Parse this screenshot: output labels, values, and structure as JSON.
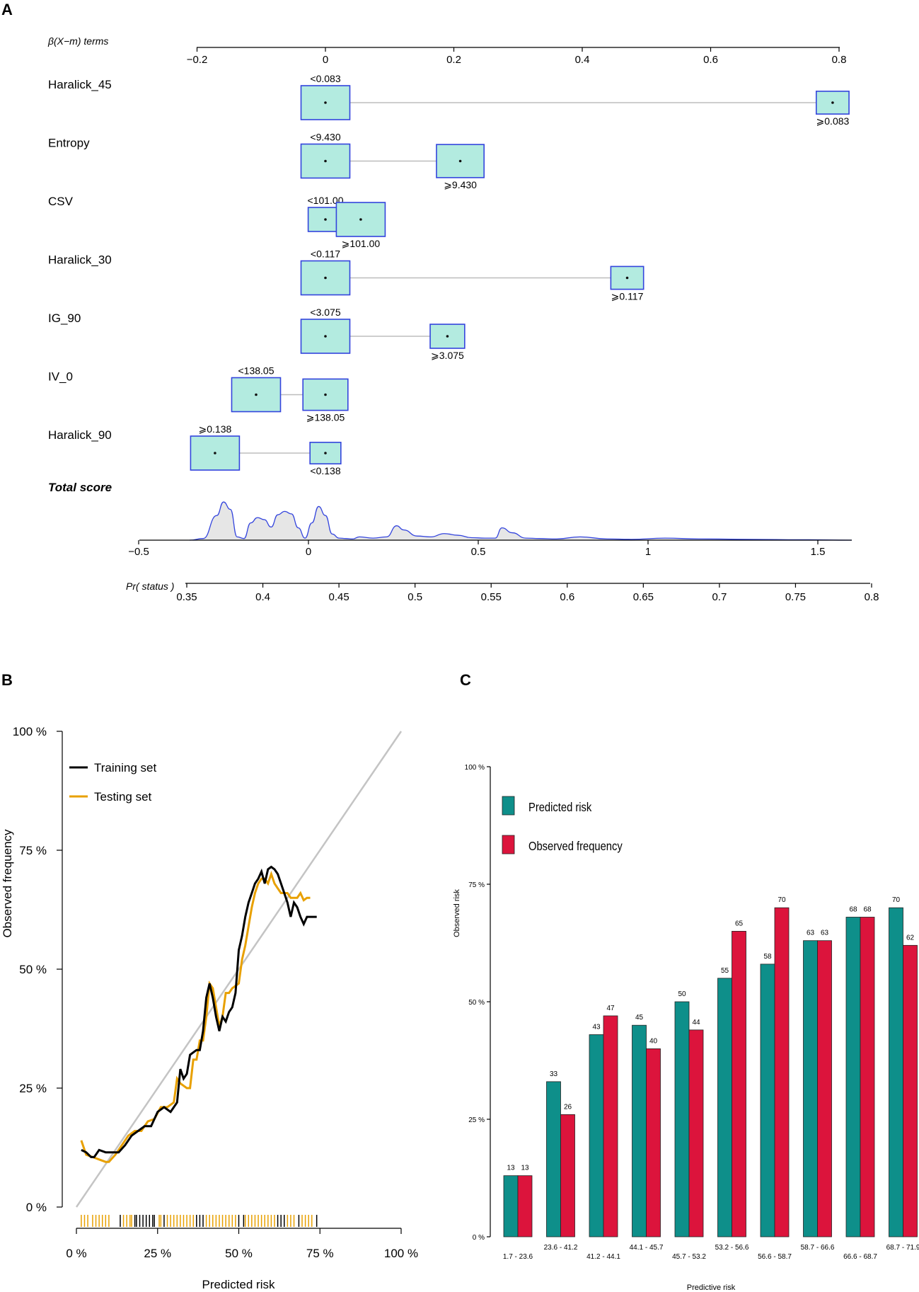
{
  "panels": {
    "a": "A",
    "b": "B",
    "c": "C"
  },
  "chart_data": [
    {
      "id": "A",
      "type": "nomogram",
      "beta_axis": {
        "label": "β(X−m) terms",
        "ticks": [
          -0.2,
          0,
          0.2,
          0.4,
          0.6,
          0.8
        ],
        "tick_labels": [
          "−0.2",
          "0",
          "0.2",
          "0.4",
          "0.6",
          "0.8"
        ]
      },
      "variables": [
        {
          "name": "Haralick_45",
          "levels": [
            {
              "label": "<0.083",
              "beta": 0.0,
              "size": 1.0,
              "label_pos": "above"
            },
            {
              "label": "⩾0.083",
              "beta": 0.79,
              "size": 0.45,
              "label_pos": "below"
            }
          ]
        },
        {
          "name": "Entropy",
          "levels": [
            {
              "label": "<9.430",
              "beta": 0.0,
              "size": 1.0,
              "label_pos": "above"
            },
            {
              "label": "⩾9.430",
              "beta": 0.21,
              "size": 0.95,
              "label_pos": "below"
            }
          ]
        },
        {
          "name": "CSV",
          "levels": [
            {
              "label": "<101.00",
              "beta": 0.0,
              "size": 0.5,
              "label_pos": "above"
            },
            {
              "label": "⩾101.00",
              "beta": 0.055,
              "size": 1.0,
              "label_pos": "below"
            }
          ]
        },
        {
          "name": "Haralick_30",
          "levels": [
            {
              "label": "<0.117",
              "beta": 0.0,
              "size": 1.0,
              "label_pos": "above"
            },
            {
              "label": "⩾0.117",
              "beta": 0.47,
              "size": 0.45,
              "label_pos": "below"
            }
          ]
        },
        {
          "name": "IG_90",
          "levels": [
            {
              "label": "<3.075",
              "beta": 0.0,
              "size": 1.0,
              "label_pos": "above"
            },
            {
              "label": "⩾3.075",
              "beta": 0.19,
              "size": 0.5,
              "label_pos": "below"
            }
          ]
        },
        {
          "name": "IV_0",
          "levels": [
            {
              "label": "<138.05",
              "beta": -0.108,
              "size": 1.0,
              "label_pos": "above"
            },
            {
              "label": "⩾138.05",
              "beta": 0.0,
              "size": 0.85,
              "label_pos": "below"
            }
          ]
        },
        {
          "name": "Haralick_90",
          "levels": [
            {
              "label": "⩾0.138",
              "beta": -0.172,
              "size": 1.0,
              "label_pos": "above"
            },
            {
              "label": "<0.138",
              "beta": 0.0,
              "size": 0.4,
              "label_pos": "below"
            }
          ]
        }
      ],
      "total_score": {
        "label": "Total score",
        "ticks": [
          -0.5,
          0,
          0.5,
          1,
          1.5
        ],
        "tick_labels": [
          "−0.5",
          "0",
          "0.5",
          "1",
          "1.5"
        ],
        "density_x": [
          -0.35,
          -0.31,
          -0.27,
          -0.25,
          -0.23,
          -0.21,
          -0.19,
          -0.17,
          -0.15,
          -0.13,
          -0.11,
          -0.09,
          -0.07,
          -0.05,
          -0.03,
          -0.01,
          0.01,
          0.03,
          0.05,
          0.07,
          0.09,
          0.11,
          0.13,
          0.15,
          0.19,
          0.23,
          0.26,
          0.28,
          0.32,
          0.36,
          0.4,
          0.44,
          0.48,
          0.52,
          0.55,
          0.57,
          0.6,
          0.64,
          0.68,
          0.73,
          0.8,
          0.88,
          0.95,
          1.05,
          1.15,
          1.3,
          1.45,
          1.6
        ],
        "density_y": [
          0.0,
          0.04,
          0.6,
          0.93,
          0.75,
          0.08,
          0.04,
          0.42,
          0.55,
          0.5,
          0.32,
          0.62,
          0.7,
          0.64,
          0.3,
          0.05,
          0.42,
          0.82,
          0.6,
          0.15,
          0.05,
          0.04,
          0.03,
          0.08,
          0.05,
          0.08,
          0.35,
          0.25,
          0.1,
          0.08,
          0.16,
          0.12,
          0.06,
          0.05,
          0.05,
          0.3,
          0.18,
          0.05,
          0.04,
          0.03,
          0.08,
          0.03,
          0.02,
          0.05,
          0.03,
          0.02,
          0.01,
          0.0
        ]
      },
      "pr_status": {
        "label": "Pr( status )",
        "ticks": [
          0.35,
          0.4,
          0.45,
          0.5,
          0.55,
          0.6,
          0.65,
          0.7,
          0.75,
          0.8
        ],
        "tick_labels": [
          "0.35",
          "0.4",
          "0.45",
          "0.5",
          "0.55",
          "0.6",
          "0.65",
          "0.7",
          "0.75",
          "0.8"
        ]
      }
    },
    {
      "id": "B",
      "type": "line",
      "xlabel": "Predicted risk",
      "ylabel": "Observed frequency",
      "xlim": [
        0,
        100
      ],
      "ylim": [
        0,
        100
      ],
      "x_tick_labels": [
        "0 %",
        "25 %",
        "50 %",
        "75 %",
        "100 %"
      ],
      "y_tick_labels": [
        "0 %",
        "25 %",
        "50 %",
        "75 %",
        "100 %"
      ],
      "legend": [
        "Training set",
        "Testing set"
      ],
      "reference_line": "diagonal",
      "series": [
        {
          "name": "Training set",
          "color": "#000000",
          "x": [
            1.5,
            3,
            4.5,
            5.5,
            7,
            9,
            11,
            13,
            15,
            17,
            19,
            21,
            23,
            25,
            27,
            29,
            31,
            32,
            33,
            34,
            35,
            36,
            37,
            38,
            39,
            40,
            41,
            42,
            43,
            44,
            45,
            46,
            47,
            48,
            49,
            50,
            51,
            52,
            53,
            54,
            55,
            56,
            57,
            58,
            59,
            60,
            61,
            62,
            63,
            64,
            65,
            66,
            67,
            68,
            69,
            70,
            71,
            72,
            73,
            74
          ],
          "y": [
            12,
            11.5,
            10.5,
            10.5,
            12,
            11.5,
            11.5,
            11.5,
            13,
            15,
            16,
            17,
            17,
            20,
            21,
            20,
            22,
            29,
            27,
            28,
            32,
            32.5,
            33,
            33,
            37,
            44,
            47,
            44,
            40,
            37,
            40,
            39,
            41,
            42,
            45,
            54,
            57,
            61,
            64,
            66,
            68,
            69,
            70.5,
            68,
            71,
            71.5,
            71,
            70,
            68,
            66,
            64,
            61,
            64,
            63,
            61,
            59.5,
            61,
            61,
            61,
            61
          ]
        },
        {
          "name": "Testing set",
          "color": "#e8a000",
          "x": [
            1.5,
            3,
            5,
            7,
            9,
            10,
            12,
            14,
            16,
            18,
            20,
            22,
            24,
            26,
            28,
            30,
            31,
            32,
            34,
            35,
            36,
            37,
            38,
            39,
            40,
            41,
            42,
            43,
            44,
            45,
            46,
            47,
            48,
            50,
            51,
            52,
            53,
            54,
            55,
            56,
            57,
            58,
            59,
            60,
            61,
            62,
            63,
            64,
            65,
            66,
            67,
            68,
            69,
            70,
            71,
            72
          ],
          "y": [
            14,
            11,
            10.5,
            10,
            9.5,
            9.5,
            11,
            13,
            15,
            16,
            16,
            18,
            18.5,
            21,
            21,
            22,
            27,
            26,
            25,
            25,
            31,
            31,
            35,
            35,
            40,
            47,
            46,
            42,
            38,
            40,
            45,
            45,
            46,
            47,
            52,
            55,
            59,
            63,
            66,
            68,
            69,
            69,
            68,
            70,
            68,
            67,
            66,
            66,
            66,
            65,
            65,
            65,
            66,
            64.5,
            65,
            65
          ]
        }
      ],
      "rug_training": [
        13.5,
        18,
        18.5,
        19.5,
        20.5,
        21.5,
        22.5,
        23.5,
        24,
        27,
        37,
        38,
        39,
        50,
        51.5,
        62,
        63,
        64,
        68.5,
        74
      ],
      "rug_testing": [
        1.5,
        2.5,
        3.5,
        5,
        6,
        7,
        8,
        9,
        10,
        14.5,
        15.5,
        16.5,
        17,
        25.5,
        26,
        28,
        29,
        30,
        31,
        32,
        33,
        34,
        35,
        36,
        40,
        41,
        42,
        43,
        44,
        45,
        46,
        47,
        48,
        49,
        52,
        53,
        54,
        55,
        56,
        57,
        58,
        59,
        60,
        61,
        65,
        66,
        67,
        69.5,
        70.5,
        71.5,
        72.5
      ]
    },
    {
      "id": "C",
      "type": "bar",
      "xlabel": "Predictive risk",
      "ylabel": "Observed risk",
      "ylim": [
        0,
        100
      ],
      "y_tick_labels": [
        "0 %",
        "25 %",
        "50 %",
        "75 %",
        "100 %"
      ],
      "categories": [
        "1.7 - 23.6",
        "23.6 - 41.2",
        "41.2 - 44.1",
        "44.1 - 45.7",
        "45.7 - 53.2",
        "53.2 - 56.6",
        "56.6 - 58.7",
        "58.7 - 66.6",
        "66.6 - 68.7",
        "68.7 - 71.9"
      ],
      "series": [
        {
          "name": "Predicted risk",
          "color": "#0e8f8a",
          "values": [
            13,
            33,
            43,
            45,
            50,
            55,
            58,
            63,
            68,
            70
          ]
        },
        {
          "name": "Observed frequency",
          "color": "#dc143c",
          "values": [
            13,
            26,
            47,
            40,
            44,
            65,
            70,
            63,
            68,
            62
          ]
        }
      ],
      "legend": [
        "Predicted risk",
        "Observed frequency"
      ]
    }
  ]
}
